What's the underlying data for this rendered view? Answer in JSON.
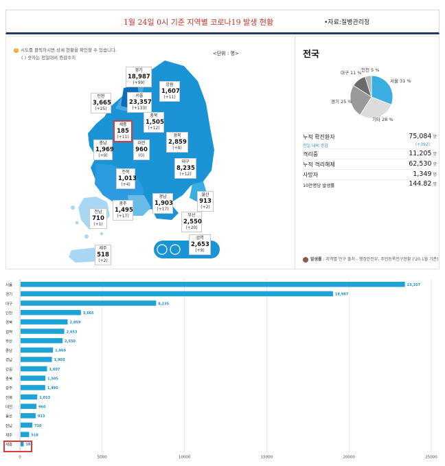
{
  "header": {
    "title": "1월 24일 0시 기준 지역별 코로나19 발생 현황",
    "source": "•자료:질병관리청"
  },
  "map_panel": {
    "note1": "시도를 클릭하시면 상세 현황을 확인할 수 있습니다.",
    "note2": "( ) 숫자는 전일대비 증감수치",
    "unit": "<단위 : 명>",
    "regions": [
      {
        "name": "경기",
        "value": "18,987",
        "delta": "(+99)"
      },
      {
        "name": "강원",
        "value": "1,607",
        "delta": "(+11)"
      },
      {
        "name": "인천",
        "value": "3,665",
        "delta": "(+25)"
      },
      {
        "name": "서울",
        "value": "23,357",
        "delta": "(+133)"
      },
      {
        "name": "충북",
        "value": "1,505",
        "delta": "(+12)"
      },
      {
        "name": "세종",
        "value": "185",
        "delta": "(+11)"
      },
      {
        "name": "대전",
        "value": "960",
        "delta": "(0)"
      },
      {
        "name": "경북",
        "value": "2,859",
        "delta": "(+8)"
      },
      {
        "name": "충남",
        "value": "1,969",
        "delta": "(+9)"
      },
      {
        "name": "대구",
        "value": "8,235",
        "delta": "(+12)"
      },
      {
        "name": "전북",
        "value": "1,013",
        "delta": "(+4)"
      },
      {
        "name": "울산",
        "value": "913",
        "delta": "(+2)"
      },
      {
        "name": "경남",
        "value": "1,903",
        "delta": "(+17)"
      },
      {
        "name": "광주",
        "value": "1,495",
        "delta": "(+17)"
      },
      {
        "name": "전남",
        "value": "710",
        "delta": "(+1)"
      },
      {
        "name": "부산",
        "value": "2,550",
        "delta": "(+20)"
      },
      {
        "name": "검역",
        "value": "2,653",
        "delta": "(+9)"
      },
      {
        "name": "제주",
        "value": "518",
        "delta": "(+2)"
      }
    ]
  },
  "national": {
    "title": "전국",
    "pie": [
      {
        "label": "서울 31 %",
        "value": 31,
        "color": "#3aaee0"
      },
      {
        "label": "기타 28 %",
        "value": 28,
        "color": "#dcdcdc"
      },
      {
        "label": "경기 25 %",
        "value": 25,
        "color": "#9a9a9a"
      },
      {
        "label": "대구 11 %",
        "value": 11,
        "color": "#6b6b6b"
      },
      {
        "label": "인천 5 %",
        "value": 5,
        "color": "#b8b8b8"
      }
    ],
    "stats": [
      {
        "label": "누적 확진환자",
        "value": "75,084",
        "unit": "명"
      },
      {
        "label": "격리중",
        "value": "11,205",
        "unit": "명"
      },
      {
        "label": "누적 격리해제",
        "value": "62,530",
        "unit": "명"
      },
      {
        "label": "사망자",
        "value": "1,349",
        "unit": "명"
      },
      {
        "label": "10만명당 발생률",
        "value": "144.82",
        "unit": "명"
      }
    ],
    "change_label": "전일 대비 증감",
    "change_value": "(+392)",
    "footnote_label": "발생률",
    "footnote": " : 지역별 인구 출처 - 행정안전부, 주민등록인구현황 ('20.1월 기준)"
  },
  "chart_data": {
    "type": "bar",
    "orientation": "horizontal",
    "categories": [
      "서울",
      "경기",
      "대구",
      "인천",
      "경북",
      "검역",
      "부산",
      "충남",
      "경남",
      "강원",
      "충북",
      "광주",
      "전북",
      "대전",
      "울산",
      "전남",
      "제주",
      "세종"
    ],
    "values": [
      23357,
      18987,
      8235,
      3665,
      2859,
      2653,
      2550,
      1969,
      1903,
      1607,
      1505,
      1495,
      1013,
      960,
      913,
      710,
      518,
      185
    ],
    "value_labels": [
      "23,357",
      "18,987",
      "8,235",
      "3,665",
      "2,859",
      "2,653",
      "2,550",
      "1,969",
      "1,903",
      "1,607",
      "1,505",
      "1,495",
      "1,013",
      "960",
      "913",
      "710",
      "518",
      "185"
    ],
    "xlim": [
      0,
      25000
    ],
    "xticks": [
      0,
      5000,
      10000,
      15000,
      20000,
      25000
    ],
    "bar_color": "#1fa3d6",
    "grid": true,
    "highlight": "세종"
  }
}
